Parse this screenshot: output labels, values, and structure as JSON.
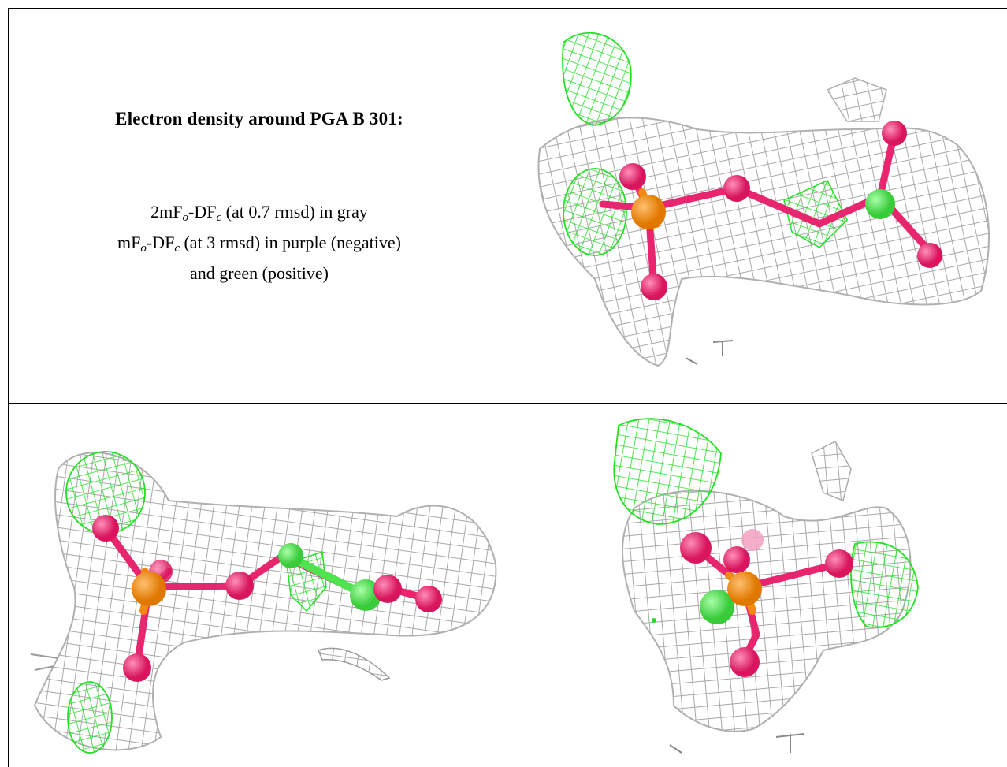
{
  "caption": {
    "title": "Electron density around PGA B 301:",
    "line1": {
      "prefix": "2mF",
      "sub1": "o",
      "mid": "-DF",
      "sub2": "c",
      "rest": " (at 0.7 rmsd) in gray"
    },
    "line2": {
      "prefix": "mF",
      "sub1": "o",
      "mid": "-DF",
      "sub2": "c",
      "rest": " (at 3 rmsd) in purple (negative)"
    },
    "line3": "and green (positive)"
  },
  "colors": {
    "mesh_gray": "#a8a8a8",
    "mesh_green": "#22e022",
    "atom_pink": "#e8266f",
    "atom_orange": "#f28a12",
    "atom_green": "#4fe34f"
  }
}
